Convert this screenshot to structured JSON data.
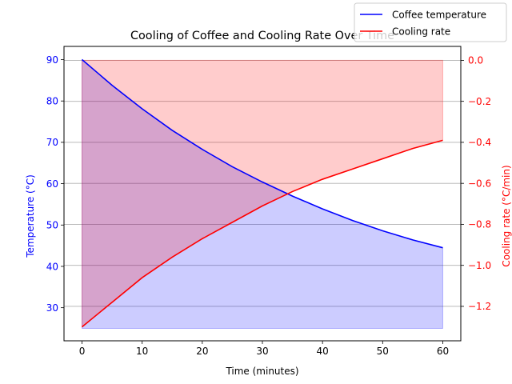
{
  "chart_data": {
    "type": "line",
    "title": "Cooling of Coffee and Cooling Rate Over Time",
    "xlabel": "Time (minutes)",
    "xlim": [
      -3,
      63
    ],
    "x_ticks": [
      0,
      10,
      20,
      30,
      40,
      50,
      60
    ],
    "left_axis": {
      "label": "Temperature ($^\\circ$C)",
      "label_display": "Temperature (°C)",
      "ylim": [
        22,
        93.2
      ],
      "ticks": [
        30,
        40,
        50,
        60,
        70,
        80,
        90
      ],
      "color": "#0000ff"
    },
    "right_axis": {
      "label": "Cooling rate ($^\\circ$C/min)",
      "label_display": "Cooling rate (°C/min)",
      "ylim": [
        -1.368,
        0.068
      ],
      "ticks": [
        -1.2,
        -1.0,
        -0.8,
        -0.6,
        -0.4,
        -0.2,
        0.0
      ],
      "tick_labels": [
        "−1.2",
        "−1.0",
        "−0.8",
        "−0.6",
        "−0.4",
        "−0.2",
        "0.0"
      ],
      "color": "#ff0000"
    },
    "grid": "horizontal (right axis)",
    "legend_placement": "top-right",
    "series": [
      {
        "name": "Coffee temperature",
        "axis": "left",
        "color": "#0000ff",
        "fill_color": "#0000ff",
        "fill_opacity": 0.2,
        "fill_to": 25,
        "x": [
          0,
          5,
          10,
          15,
          20,
          25,
          30,
          35,
          40,
          45,
          50,
          55,
          60
        ],
        "values": [
          90.0,
          83.8,
          78.1,
          72.9,
          68.3,
          64.1,
          60.4,
          57.0,
          53.9,
          51.1,
          48.6,
          46.4,
          44.5
        ]
      },
      {
        "name": "Cooling rate",
        "axis": "right",
        "color": "#ff0000",
        "fill_color": "#ff0000",
        "fill_opacity": 0.2,
        "fill_to": 0,
        "x": [
          0,
          5,
          10,
          15,
          20,
          25,
          30,
          35,
          40,
          45,
          50,
          55,
          60
        ],
        "values": [
          -1.3,
          -1.18,
          -1.06,
          -0.96,
          -0.87,
          -0.79,
          -0.71,
          -0.64,
          -0.58,
          -0.53,
          -0.48,
          -0.43,
          -0.39
        ]
      }
    ]
  }
}
